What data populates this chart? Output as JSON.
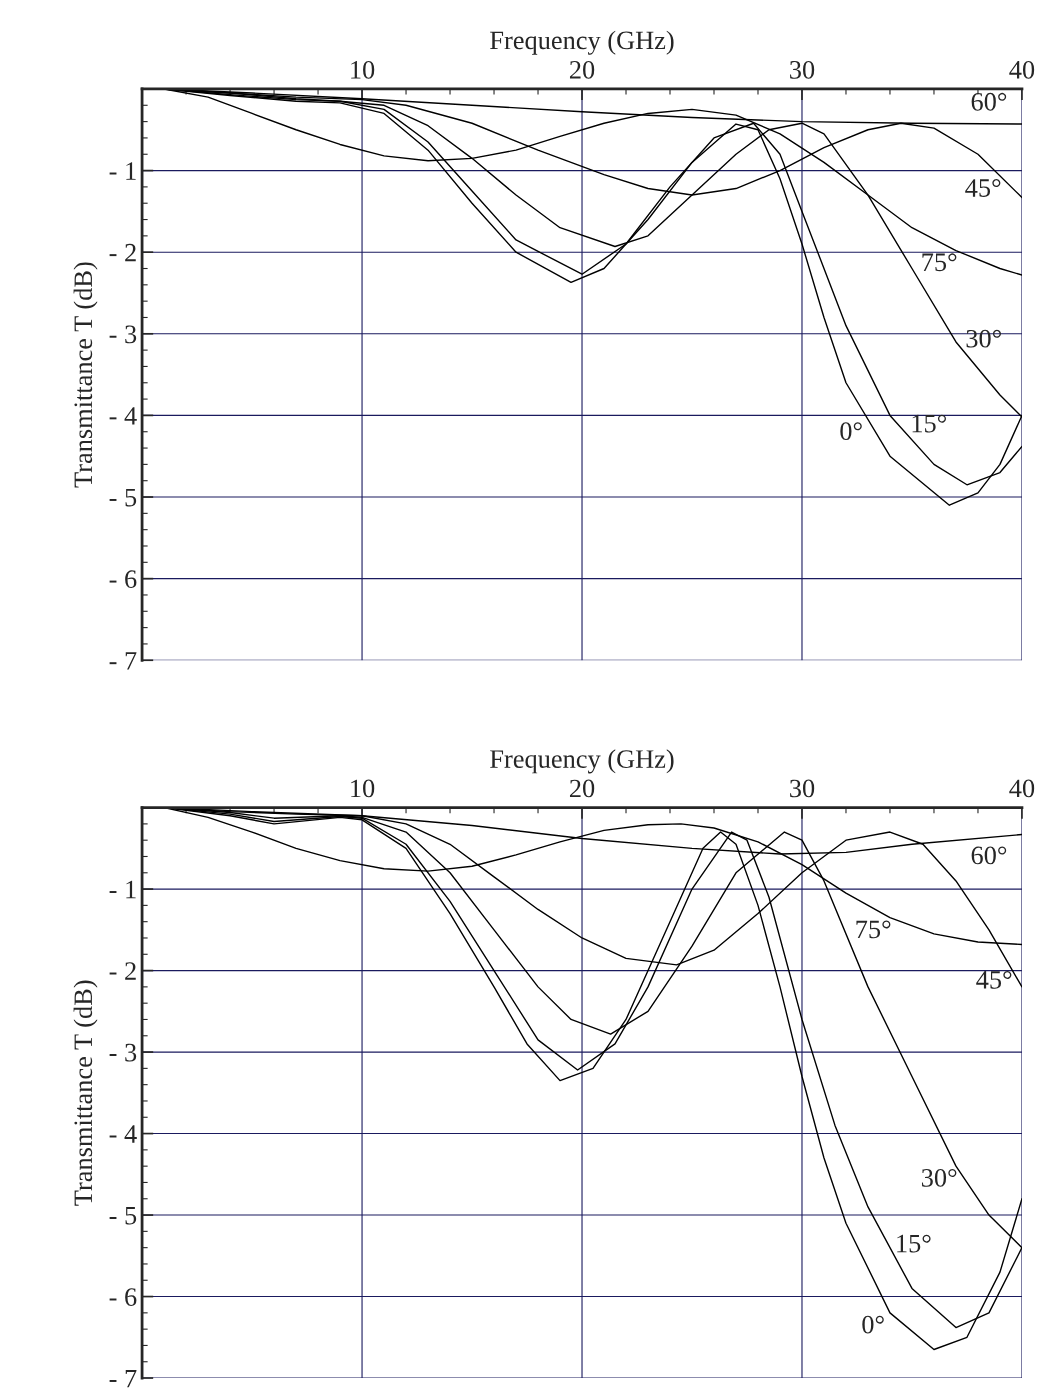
{
  "chart_data": [
    {
      "type": "line",
      "xlabel": "Frequency (GHz)",
      "ylabel": "Transmittance T (dB)",
      "xlim": [
        0,
        40
      ],
      "ylim": [
        -7,
        0
      ],
      "xticks": [
        10,
        20,
        30,
        40
      ],
      "yticks": [
        {
          "value": -1,
          "label": "- 1"
        },
        {
          "value": -2,
          "label": "- 2"
        },
        {
          "value": -3,
          "label": "- 3"
        },
        {
          "value": -4,
          "label": "- 4"
        },
        {
          "value": -5,
          "label": "- 5"
        },
        {
          "value": -6,
          "label": "- 6"
        },
        {
          "value": -7,
          "label": "- 7"
        }
      ],
      "grid": true,
      "series": [
        {
          "color": "#000000",
          "x": [
            1,
            4,
            7,
            9,
            11,
            13,
            15,
            17,
            19.5,
            21,
            23,
            25,
            27,
            28,
            29,
            30,
            31,
            32,
            34,
            36.7,
            38,
            39,
            40
          ],
          "values": [
            0,
            -0.08,
            -0.15,
            -0.17,
            -0.3,
            -0.75,
            -1.4,
            -2.0,
            -2.37,
            -2.2,
            -1.6,
            -0.9,
            -0.43,
            -0.5,
            -1.1,
            -1.9,
            -2.8,
            -3.6,
            -4.5,
            -5.1,
            -4.95,
            -4.6,
            -4.0
          ]
        },
        {
          "color": "#000000",
          "x": [
            1,
            4,
            7,
            9,
            11,
            13,
            15,
            17,
            20,
            22,
            24,
            26,
            27.8,
            29,
            30,
            32,
            34,
            36,
            37.5,
            39,
            40
          ],
          "values": [
            0,
            -0.07,
            -0.13,
            -0.15,
            -0.25,
            -0.65,
            -1.25,
            -1.85,
            -2.27,
            -1.9,
            -1.2,
            -0.6,
            -0.42,
            -0.8,
            -1.5,
            -2.9,
            -4.0,
            -4.6,
            -4.85,
            -4.7,
            -4.38
          ]
        },
        {
          "color": "#000000",
          "x": [
            1,
            4,
            7,
            9,
            11,
            13,
            15,
            17,
            19,
            21.5,
            23,
            25,
            27,
            28.5,
            30,
            31,
            33,
            35,
            37,
            39,
            40
          ],
          "values": [
            0,
            -0.05,
            -0.12,
            -0.15,
            -0.2,
            -0.45,
            -0.85,
            -1.3,
            -1.7,
            -1.93,
            -1.8,
            -1.3,
            -0.8,
            -0.5,
            -0.42,
            -0.55,
            -1.3,
            -2.2,
            -3.1,
            -3.75,
            -4.02
          ]
        },
        {
          "color": "#000000",
          "x": [
            1,
            4,
            7,
            10,
            12,
            15,
            18,
            21,
            23,
            25,
            27,
            29,
            31,
            33,
            34.5,
            36,
            38,
            40
          ],
          "values": [
            0,
            -0.05,
            -0.1,
            -0.13,
            -0.2,
            -0.42,
            -0.75,
            -1.05,
            -1.22,
            -1.3,
            -1.22,
            -1.0,
            -0.72,
            -0.5,
            -0.42,
            -0.48,
            -0.8,
            -1.33
          ]
        },
        {
          "color": "#000000",
          "x": [
            1,
            5,
            10,
            15,
            20,
            25,
            30,
            35,
            40
          ],
          "values": [
            0,
            -0.05,
            -0.12,
            -0.2,
            -0.28,
            -0.35,
            -0.4,
            -0.42,
            -0.43
          ]
        },
        {
          "color": "#000000",
          "x": [
            1,
            3,
            5,
            7,
            9,
            11,
            13,
            15,
            17,
            19,
            21,
            23,
            25,
            27,
            29,
            31,
            33,
            35,
            37,
            39,
            40
          ],
          "values": [
            0,
            -0.1,
            -0.3,
            -0.5,
            -0.68,
            -0.82,
            -0.88,
            -0.85,
            -0.75,
            -0.58,
            -0.42,
            -0.3,
            -0.25,
            -0.32,
            -0.55,
            -0.9,
            -1.3,
            -1.7,
            -1.98,
            -2.2,
            -2.28
          ]
        }
      ],
      "annotations": [
        {
          "text": "60°",
          "x": 38.5,
          "y": -0.43
        },
        {
          "text": "45°",
          "x": 39,
          "y": -1.07
        },
        {
          "text": "75°",
          "x": 37,
          "y": -1.98
        },
        {
          "text": "30°",
          "x": 37.5,
          "y": -3.26
        },
        {
          "text": "15°",
          "x": 35,
          "y": -4.3
        },
        {
          "text": "0°",
          "x": 33,
          "y": -4.05
        }
      ]
    },
    {
      "type": "line",
      "xlabel": "Frequency (GHz)",
      "ylabel": "Transmittance T (dB)",
      "xlim": [
        0,
        40
      ],
      "ylim": [
        -7,
        0
      ],
      "xticks": [
        10,
        20,
        30,
        40
      ],
      "yticks": [
        {
          "value": -1,
          "label": "- 1"
        },
        {
          "value": -2,
          "label": "- 2"
        },
        {
          "value": -3,
          "label": "- 3"
        },
        {
          "value": -4,
          "label": "- 4"
        },
        {
          "value": -5,
          "label": "- 5"
        },
        {
          "value": -6,
          "label": "- 6"
        },
        {
          "value": -7,
          "label": "- 7"
        }
      ],
      "grid": true,
      "series": [
        {
          "color": "#000000",
          "x": [
            1,
            4,
            6,
            9,
            10,
            12,
            14,
            16,
            17.5,
            19,
            20.5,
            22,
            24,
            25.5,
            26.3,
            27,
            28,
            29,
            30,
            31,
            32,
            34,
            36,
            37.5,
            39,
            40
          ],
          "values": [
            0,
            -0.1,
            -0.2,
            -0.12,
            -0.15,
            -0.5,
            -1.3,
            -2.2,
            -2.9,
            -3.35,
            -3.2,
            -2.6,
            -1.4,
            -0.5,
            -0.3,
            -0.45,
            -1.2,
            -2.2,
            -3.3,
            -4.3,
            -5.1,
            -6.2,
            -6.65,
            -6.5,
            -5.7,
            -4.8
          ]
        },
        {
          "color": "#000000",
          "x": [
            1,
            4,
            6,
            9,
            10,
            12,
            14,
            16,
            18,
            19.8,
            21.5,
            23,
            25,
            26.8,
            27.5,
            28.5,
            30,
            31.5,
            33,
            35,
            37,
            38.5,
            40
          ],
          "values": [
            0,
            -0.08,
            -0.17,
            -0.11,
            -0.13,
            -0.45,
            -1.15,
            -2.0,
            -2.85,
            -3.22,
            -2.9,
            -2.2,
            -1.0,
            -0.3,
            -0.4,
            -1.1,
            -2.6,
            -3.9,
            -4.9,
            -5.9,
            -6.38,
            -6.2,
            -5.4
          ]
        },
        {
          "color": "#000000",
          "x": [
            1,
            4,
            6,
            9,
            10,
            12,
            14,
            16,
            18,
            19.5,
            21.3,
            23,
            25,
            27,
            29.2,
            30,
            31,
            33,
            35,
            37,
            38.5,
            40
          ],
          "values": [
            0,
            -0.06,
            -0.13,
            -0.1,
            -0.12,
            -0.3,
            -0.8,
            -1.5,
            -2.2,
            -2.6,
            -2.78,
            -2.5,
            -1.7,
            -0.8,
            -0.3,
            -0.4,
            -0.9,
            -2.2,
            -3.3,
            -4.4,
            -5.0,
            -5.4
          ]
        },
        {
          "color": "#000000",
          "x": [
            1,
            4,
            7,
            10,
            12,
            14,
            16,
            18,
            20,
            22,
            24.3,
            26,
            28,
            30,
            32,
            34,
            35.5,
            37,
            38.5,
            40
          ],
          "values": [
            0,
            -0.05,
            -0.08,
            -0.1,
            -0.2,
            -0.45,
            -0.85,
            -1.25,
            -1.6,
            -1.85,
            -1.93,
            -1.75,
            -1.3,
            -0.8,
            -0.4,
            -0.3,
            -0.45,
            -0.9,
            -1.5,
            -2.2
          ]
        },
        {
          "color": "#000000",
          "x": [
            1,
            5,
            10,
            15,
            20,
            25,
            29,
            32,
            35,
            40
          ],
          "values": [
            0,
            -0.05,
            -0.1,
            -0.22,
            -0.38,
            -0.5,
            -0.57,
            -0.55,
            -0.45,
            -0.33
          ]
        },
        {
          "color": "#000000",
          "x": [
            1,
            3,
            5,
            7,
            9,
            11,
            13,
            15,
            17,
            19,
            21,
            23,
            24.5,
            26,
            28,
            30,
            32,
            34,
            36,
            38,
            40
          ],
          "values": [
            0,
            -0.12,
            -0.3,
            -0.5,
            -0.65,
            -0.75,
            -0.78,
            -0.72,
            -0.58,
            -0.42,
            -0.28,
            -0.21,
            -0.2,
            -0.25,
            -0.42,
            -0.7,
            -1.05,
            -1.35,
            -1.55,
            -1.65,
            -1.68
          ]
        }
      ],
      "annotations": [
        {
          "text": "60°",
          "x": 38.5,
          "y": -0.37
        },
        {
          "text": "75°",
          "x": 34,
          "y": -1.35
        },
        {
          "text": "45°",
          "x": 39.5,
          "y": -1.97
        },
        {
          "text": "30°",
          "x": 37,
          "y": -4.4
        },
        {
          "text": "15°",
          "x": 34.3,
          "y": -5.55
        },
        {
          "text": "0°",
          "x": 34,
          "y": -6.2
        }
      ]
    }
  ]
}
